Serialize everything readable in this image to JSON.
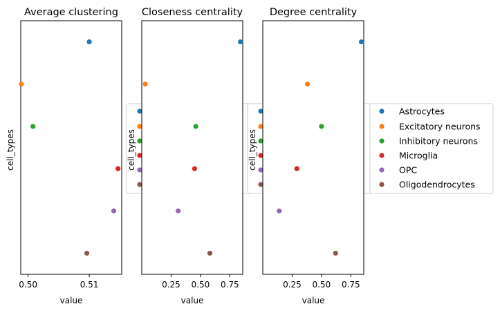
{
  "chart_data": {
    "type": "scatter",
    "categories": [
      "Astrocytes",
      "Excitatory neurons",
      "Inhibitory neurons",
      "Microglia",
      "OPC",
      "Oligodendrocytes"
    ],
    "colors": [
      "#1f77b4",
      "#ff7f0e",
      "#2ca02c",
      "#d62728",
      "#9467bd",
      "#8c564b"
    ],
    "legend": {
      "placement": "right",
      "entries": [
        "Astrocytes",
        "Excitatory neurons",
        "Inhibitory neurons",
        "Microglia",
        "OPC",
        "Oligodendrocytes"
      ]
    },
    "panels": [
      {
        "title": "Average clustering",
        "xlabel": "value",
        "ylabel": "cell_types",
        "xlim": [
          0.4988,
          0.5153
        ],
        "xticks": [
          0.5,
          0.51
        ],
        "xticklabels": [
          "0.50",
          "0.51"
        ],
        "values": [
          0.51,
          0.4989,
          0.5008,
          0.5147,
          0.514,
          0.5096
        ]
      },
      {
        "title": "Closeness centrality",
        "xlabel": "value",
        "ylabel": "cell_types",
        "xlim": [
          0.0,
          0.86
        ],
        "xticks": [
          0.25,
          0.5,
          0.75
        ],
        "xticklabels": [
          "0.25",
          "0.50",
          "0.75"
        ],
        "values": [
          0.84,
          0.03,
          0.46,
          0.45,
          0.31,
          0.58
        ]
      },
      {
        "title": "Degree centrality",
        "xlabel": "value",
        "ylabel": "cell_types",
        "xlim": [
          0.0,
          0.86
        ],
        "xticks": [
          0.25,
          0.5,
          0.75
        ],
        "xticklabels": [
          "0.25",
          "0.50",
          "0.75"
        ],
        "values": [
          0.84,
          0.38,
          0.5,
          0.29,
          0.14,
          0.62
        ]
      }
    ]
  }
}
